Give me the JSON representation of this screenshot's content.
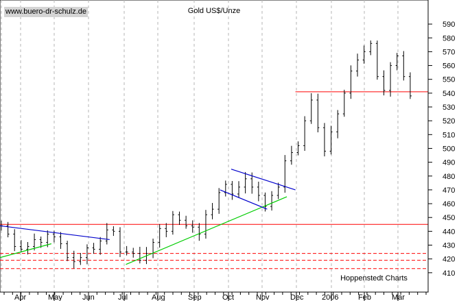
{
  "chart_data": {
    "type": "ohlc",
    "title": "Gold US$/Unze",
    "source_label": "www.buero-dr-schulz.de",
    "credit": "Hoppenstedt Charts",
    "ylim": [
      403,
      598
    ],
    "y_ticks": [
      410,
      420,
      430,
      440,
      450,
      460,
      470,
      480,
      490,
      500,
      510,
      520,
      530,
      540,
      550,
      560,
      570,
      580,
      590
    ],
    "x_labels": [
      "Apr",
      "May",
      "Jun",
      "Jul",
      "Aug",
      "Sep",
      "Oct",
      "Nov",
      "Dec",
      "2006",
      "Feb",
      "Mar"
    ],
    "grid": "vertical dashed at month starts",
    "axis_position": "right",
    "colors": {
      "bars": "#000000",
      "resistance": "#ff0000",
      "support_dashed": "#ff0000",
      "trend_blue": "#0000cc",
      "trend_green": "#00cc00",
      "grid": "#b4b4b4"
    },
    "series": [
      {
        "closes_weekly": [
          444,
          438,
          429,
          427,
          429,
          434,
          432,
          438,
          436,
          431,
          421,
          418,
          421,
          428,
          427,
          433,
          441,
          440,
          425,
          425,
          424,
          419,
          424,
          432,
          442,
          440,
          452,
          448,
          444,
          443,
          438,
          452,
          456,
          468,
          474,
          467,
          472,
          478,
          472,
          466,
          458,
          466,
          472,
          491,
          497,
          502,
          520,
          535,
          515,
          498,
          512,
          525,
          540,
          556,
          564,
          570,
          576,
          552,
          542,
          560,
          567,
          552,
          538
        ]
      }
    ],
    "reference_lines": [
      {
        "label": "resistance",
        "y": 445,
        "style": "solid"
      },
      {
        "label": "resistance",
        "y": 541,
        "style": "solid"
      },
      {
        "label": "support",
        "y": 424,
        "style": "dashed"
      },
      {
        "label": "support",
        "y": 419,
        "style": "dashed"
      },
      {
        "label": "support",
        "y": 413,
        "style": "dashed"
      }
    ],
    "trend_lines": [
      {
        "color": "blue",
        "from": [
          0,
          444
        ],
        "to": [
          0.256,
          434
        ]
      },
      {
        "color": "green",
        "from": [
          0,
          421
        ],
        "to": [
          0.12,
          431
        ]
      },
      {
        "color": "green",
        "from": [
          0.294,
          416
        ],
        "to": [
          0.67,
          465
        ]
      },
      {
        "color": "blue",
        "from": [
          0.54,
          485
        ],
        "to": [
          0.69,
          470
        ]
      },
      {
        "color": "blue",
        "from": [
          0.514,
          470
        ],
        "to": [
          0.624,
          456
        ]
      }
    ]
  }
}
